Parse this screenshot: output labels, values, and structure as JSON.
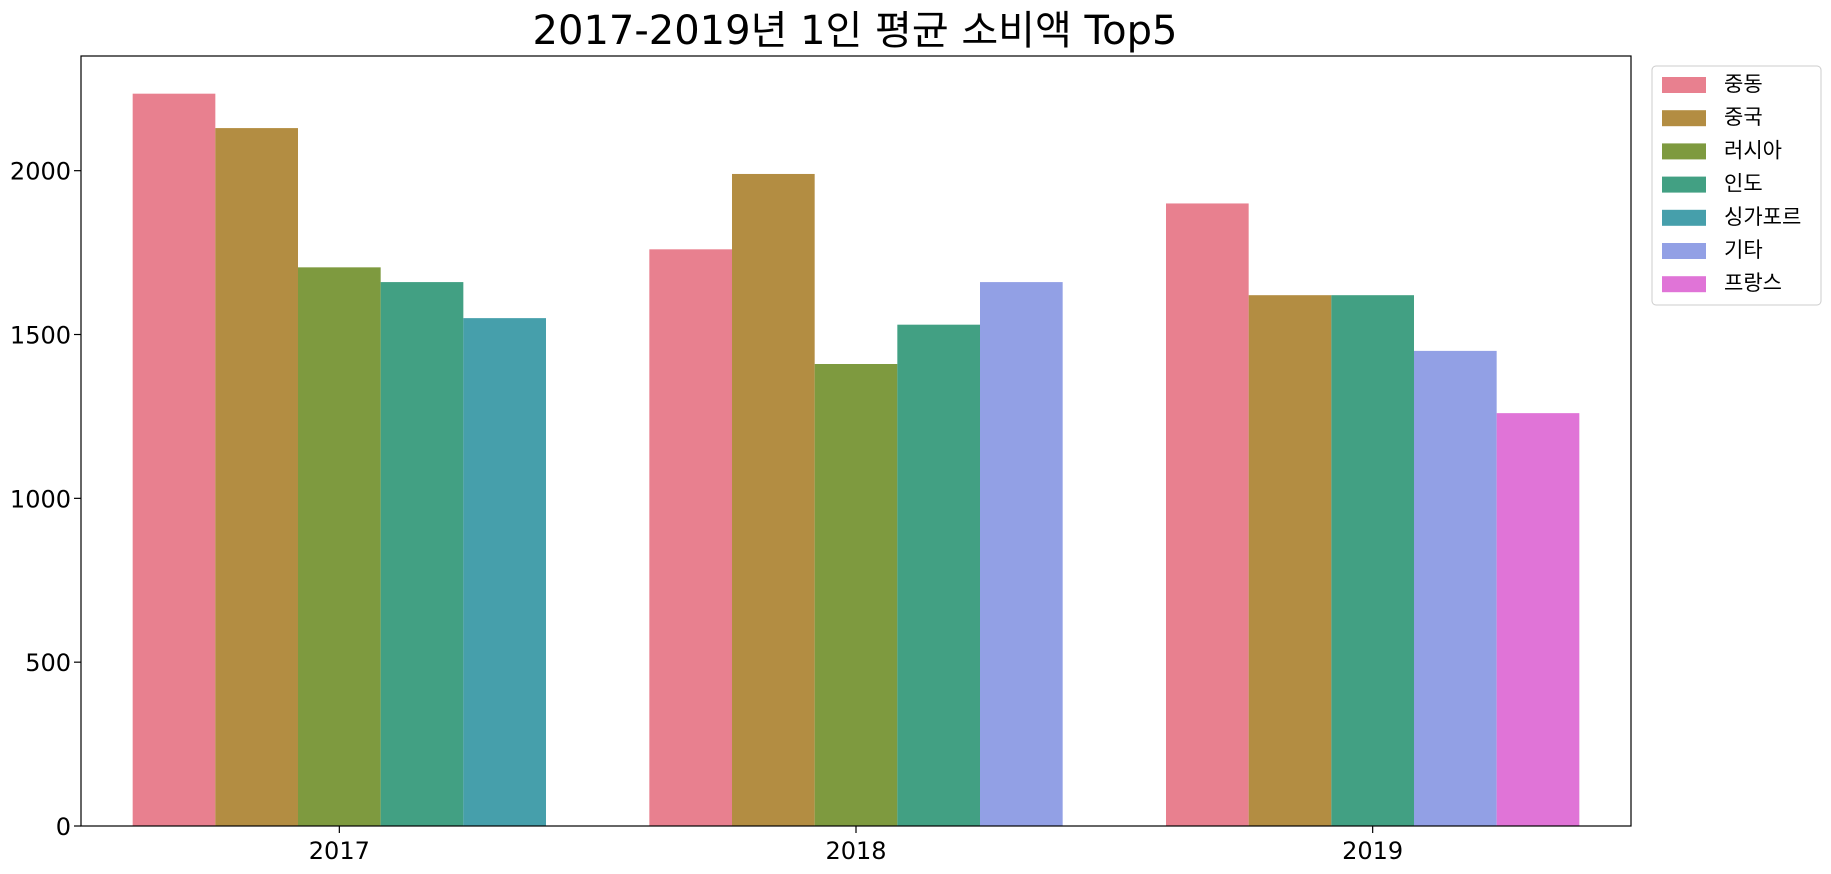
{
  "chart_data": {
    "type": "bar",
    "title": "2017-2019년 1인 평균 소비액 Top5",
    "xlabel": "",
    "ylabel": "",
    "ylim": [
      0,
      2350
    ],
    "yticks": [
      0,
      500,
      1000,
      1500,
      2000
    ],
    "grid": false,
    "legend_position": "top-right outside",
    "categories": [
      "2017",
      "2018",
      "2019"
    ],
    "series": [
      {
        "name": "중동",
        "color": "#e8808f",
        "values": [
          2235,
          1760,
          1900
        ]
      },
      {
        "name": "중국",
        "color": "#b38d42",
        "values": [
          2130,
          1990,
          1620
        ]
      },
      {
        "name": "러시아",
        "color": "#7e9a3f",
        "values": [
          1705,
          1410,
          null
        ]
      },
      {
        "name": "인도",
        "color": "#42a083",
        "values": [
          1660,
          1530,
          1620
        ]
      },
      {
        "name": "싱가포르",
        "color": "#469fab",
        "values": [
          1550,
          null,
          null
        ]
      },
      {
        "name": "기타",
        "color": "#92a0e5",
        "values": [
          null,
          1660,
          1450
        ]
      },
      {
        "name": "프랑스",
        "color": "#e074d7",
        "values": [
          null,
          null,
          1260
        ]
      }
    ]
  }
}
